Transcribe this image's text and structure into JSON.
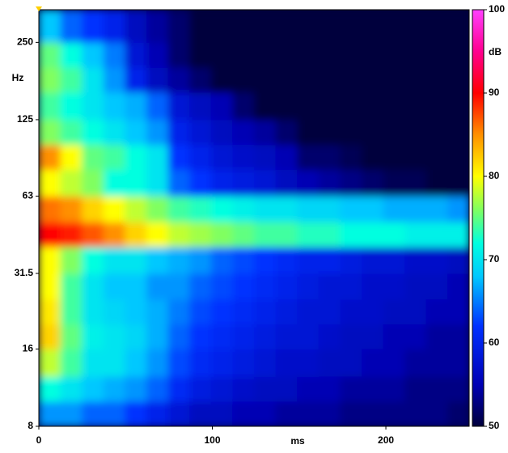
{
  "chart_data": {
    "type": "heatmap",
    "x_label": "ms",
    "y_label": "Hz",
    "colorbar_label": "dB",
    "xbins": [
      0,
      12.4,
      24.8,
      37.2,
      49.6,
      62,
      74.4,
      86.8,
      99.2,
      111.6,
      124,
      136.4,
      148.8,
      161.2,
      173.6,
      186,
      198.4,
      210.8,
      223.2,
      235.6,
      248
    ],
    "ybins": [
      8,
      10,
      12.5,
      16,
      20,
      25,
      31.5,
      40,
      50,
      63,
      80,
      100,
      125,
      160,
      200,
      250,
      335
    ],
    "values": [
      [
        66,
        66,
        64,
        64,
        62,
        60,
        58,
        56,
        56,
        55,
        55,
        54,
        54,
        54,
        53,
        53,
        53,
        53,
        53,
        52
      ],
      [
        72,
        70,
        68,
        67,
        66,
        64,
        61,
        59,
        58,
        57,
        56,
        56,
        55,
        55,
        54,
        54,
        54,
        53,
        53,
        53
      ],
      [
        78,
        74,
        70,
        70,
        68,
        66,
        63,
        61,
        60,
        59,
        58,
        57,
        57,
        56,
        56,
        55,
        55,
        54,
        54,
        54
      ],
      [
        82,
        75,
        71,
        70,
        69,
        67,
        64,
        62,
        61,
        60,
        59,
        58,
        58,
        57,
        56,
        56,
        55,
        55,
        54,
        54
      ],
      [
        81,
        74,
        70,
        69,
        68,
        67,
        65,
        63,
        62,
        61,
        60,
        59,
        58,
        58,
        57,
        57,
        56,
        56,
        55,
        55
      ],
      [
        80,
        74,
        70,
        68,
        68,
        66,
        66,
        64,
        63,
        62,
        61,
        60,
        59,
        58,
        58,
        57,
        57,
        56,
        56,
        55
      ],
      [
        80,
        76,
        72,
        70,
        70,
        68,
        67,
        66,
        64,
        63,
        62,
        61,
        60,
        60,
        59,
        58,
        58,
        57,
        57,
        56
      ],
      [
        90,
        89,
        87,
        85,
        82,
        80,
        78,
        77,
        76,
        75,
        74,
        74,
        73,
        73,
        72,
        72,
        72,
        71,
        71,
        71
      ],
      [
        86,
        85,
        82,
        80,
        78,
        76,
        74,
        73,
        72,
        71,
        70,
        70,
        69,
        69,
        68,
        68,
        67,
        67,
        67,
        66
      ],
      [
        80,
        78,
        76,
        72,
        72,
        70,
        64,
        62,
        60,
        59,
        58,
        56,
        55,
        54,
        53,
        52,
        51,
        51,
        50,
        50
      ],
      [
        85,
        80,
        75,
        74,
        72,
        70,
        62,
        60,
        58,
        57,
        56,
        55,
        52,
        52,
        51,
        50,
        50,
        50,
        50,
        50
      ],
      [
        76,
        74,
        72,
        70,
        68,
        66,
        60,
        58,
        56,
        55,
        54,
        52,
        50,
        50,
        50,
        50,
        50,
        50,
        50,
        50
      ],
      [
        74,
        72,
        70,
        68,
        67,
        64,
        58,
        56,
        55,
        52,
        50,
        50,
        50,
        50,
        50,
        50,
        50,
        50,
        50,
        50
      ],
      [
        76,
        74,
        70,
        66,
        60,
        56,
        54,
        52,
        50,
        50,
        50,
        50,
        50,
        50,
        50,
        50,
        50,
        50,
        50,
        50
      ],
      [
        75,
        72,
        68,
        65,
        58,
        55,
        52,
        50,
        50,
        50,
        50,
        50,
        50,
        50,
        50,
        50,
        50,
        50,
        50,
        50
      ],
      [
        68,
        64,
        62,
        60,
        56,
        54,
        52,
        50,
        50,
        50,
        50,
        50,
        50,
        50,
        50,
        50,
        50,
        50,
        50,
        50
      ]
    ],
    "xlim": [
      0,
      248
    ],
    "xticks": [
      0,
      100,
      200
    ],
    "ylim": [
      8,
      335
    ],
    "yticks": [
      8,
      16,
      31.5,
      63,
      125,
      250
    ],
    "log_y": true,
    "clim": [
      50,
      100
    ],
    "cticks": [
      50,
      60,
      70,
      80,
      90,
      100
    ],
    "colorscale": [
      {
        "value": 50,
        "color": "#00003c"
      },
      {
        "value": 55,
        "color": "#0000b4"
      },
      {
        "value": 62,
        "color": "#0030ff"
      },
      {
        "value": 68,
        "color": "#00c8ff"
      },
      {
        "value": 72,
        "color": "#00ffe0"
      },
      {
        "value": 76,
        "color": "#80ff60"
      },
      {
        "value": 80,
        "color": "#ffff00"
      },
      {
        "value": 85,
        "color": "#ff9000"
      },
      {
        "value": 90,
        "color": "#ff0000"
      },
      {
        "value": 95,
        "color": "#ff0090"
      },
      {
        "value": 100,
        "color": "#ff40ff"
      }
    ]
  }
}
